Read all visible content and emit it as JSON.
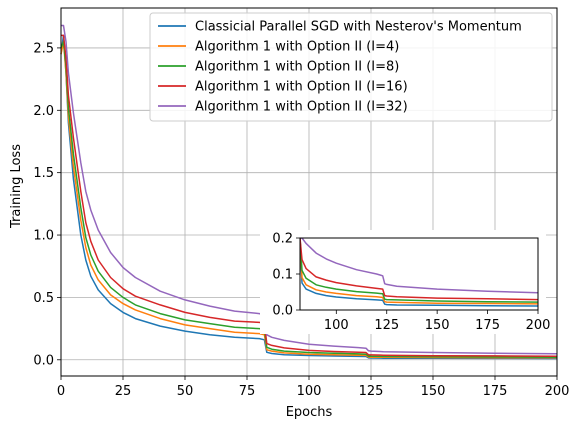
{
  "chart_data": [
    {
      "type": "line",
      "title": "",
      "xlabel": "Epochs",
      "ylabel": "Training Loss",
      "xlim": [
        0,
        200
      ],
      "ylim": [
        -0.13,
        2.82
      ],
      "xticks": [
        0,
        25,
        50,
        75,
        100,
        125,
        150,
        175,
        200
      ],
      "yticks": [
        0.0,
        0.5,
        1.0,
        1.5,
        2.0,
        2.5
      ],
      "ytick_labels": [
        "0.0",
        "0.5",
        "1.0",
        "1.5",
        "2.0",
        "2.5"
      ],
      "grid": true,
      "legend_position": "top-right",
      "series": [
        {
          "name": "Classicial Parallel SGD with Nesterov's Momentum",
          "color": "#1f77b4",
          "x": [
            0,
            1,
            2,
            3,
            5,
            8,
            10,
            12,
            15,
            20,
            25,
            30,
            40,
            50,
            60,
            70,
            80,
            82,
            83,
            85,
            90,
            100,
            110,
            120,
            123,
            124,
            125,
            130,
            150,
            175,
            200
          ],
          "y": [
            2.45,
            2.6,
            2.3,
            1.9,
            1.45,
            1.0,
            0.8,
            0.67,
            0.56,
            0.45,
            0.38,
            0.33,
            0.27,
            0.23,
            0.2,
            0.18,
            0.17,
            0.16,
            0.06,
            0.05,
            0.04,
            0.034,
            0.03,
            0.027,
            0.026,
            0.015,
            0.014,
            0.013,
            0.012,
            0.011,
            0.01
          ]
        },
        {
          "name": "Algorithm 1 with Option II (I=4)",
          "color": "#ff7f0e",
          "x": [
            0,
            1,
            2,
            3,
            5,
            8,
            10,
            12,
            15,
            20,
            25,
            30,
            40,
            50,
            60,
            70,
            80,
            82,
            83,
            85,
            90,
            100,
            110,
            120,
            123,
            124,
            125,
            130,
            150,
            175,
            200
          ],
          "y": [
            2.45,
            2.55,
            2.3,
            1.95,
            1.55,
            1.12,
            0.9,
            0.76,
            0.64,
            0.52,
            0.45,
            0.4,
            0.33,
            0.28,
            0.25,
            0.22,
            0.21,
            0.2,
            0.08,
            0.07,
            0.055,
            0.045,
            0.04,
            0.037,
            0.035,
            0.022,
            0.021,
            0.02,
            0.018,
            0.017,
            0.016
          ]
        },
        {
          "name": "Algorithm 1 with Option II (I=8)",
          "color": "#2ca02c",
          "x": [
            0,
            1,
            2,
            3,
            5,
            8,
            10,
            12,
            15,
            20,
            25,
            30,
            40,
            50,
            60,
            70,
            80,
            82,
            83,
            85,
            90,
            100,
            110,
            120,
            123,
            124,
            125,
            130,
            150,
            175,
            200
          ],
          "y": [
            2.5,
            2.55,
            2.35,
            2.02,
            1.65,
            1.22,
            0.98,
            0.84,
            0.71,
            0.58,
            0.5,
            0.44,
            0.37,
            0.32,
            0.29,
            0.26,
            0.25,
            0.24,
            0.1,
            0.085,
            0.07,
            0.058,
            0.052,
            0.047,
            0.045,
            0.029,
            0.028,
            0.027,
            0.024,
            0.022,
            0.021
          ]
        },
        {
          "name": "Algorithm 1 with Option II (I=16)",
          "color": "#d62728",
          "x": [
            0,
            1,
            2,
            3,
            5,
            8,
            10,
            12,
            15,
            20,
            25,
            30,
            40,
            50,
            60,
            70,
            80,
            82,
            83,
            85,
            90,
            100,
            110,
            120,
            123,
            124,
            125,
            130,
            150,
            175,
            200
          ],
          "y": [
            2.6,
            2.6,
            2.42,
            2.12,
            1.78,
            1.35,
            1.1,
            0.95,
            0.8,
            0.66,
            0.57,
            0.51,
            0.44,
            0.38,
            0.34,
            0.31,
            0.3,
            0.29,
            0.13,
            0.115,
            0.095,
            0.075,
            0.066,
            0.06,
            0.058,
            0.04,
            0.039,
            0.037,
            0.033,
            0.031,
            0.029
          ]
        },
        {
          "name": "Algorithm 1 with Option II (I=32)",
          "color": "#9467bd",
          "x": [
            0,
            1,
            2,
            3,
            5,
            8,
            10,
            12,
            15,
            20,
            25,
            30,
            40,
            50,
            60,
            70,
            80,
            82,
            83,
            85,
            90,
            100,
            110,
            120,
            123,
            124,
            125,
            130,
            150,
            175,
            200
          ],
          "y": [
            2.68,
            2.68,
            2.55,
            2.3,
            1.98,
            1.58,
            1.35,
            1.2,
            1.04,
            0.86,
            0.74,
            0.66,
            0.55,
            0.48,
            0.43,
            0.39,
            0.37,
            0.35,
            0.2,
            0.18,
            0.155,
            0.125,
            0.11,
            0.098,
            0.093,
            0.072,
            0.07,
            0.065,
            0.058,
            0.052,
            0.048
          ]
        }
      ]
    },
    {
      "type": "line",
      "title": "",
      "xlabel": "",
      "ylabel": "",
      "xlim": [
        82,
        200
      ],
      "ylim": [
        0,
        0.2
      ],
      "xticks": [
        100,
        125,
        150,
        175,
        200
      ],
      "yticks": [
        0.0,
        0.1,
        0.2
      ],
      "ytick_labels": [
        "0.0",
        "0.1",
        "0.2"
      ],
      "grid": false,
      "legend_position": "none",
      "series": [
        {
          "color": "#1f77b4",
          "x": [
            82,
            83,
            85,
            90,
            95,
            100,
            110,
            120,
            123,
            124,
            125,
            130,
            150,
            175,
            200
          ],
          "y": [
            0.2,
            0.075,
            0.058,
            0.046,
            0.04,
            0.036,
            0.031,
            0.028,
            0.027,
            0.016,
            0.015,
            0.014,
            0.013,
            0.012,
            0.011
          ]
        },
        {
          "color": "#ff7f0e",
          "x": [
            82,
            83,
            85,
            90,
            95,
            100,
            110,
            120,
            123,
            124,
            125,
            130,
            150,
            175,
            200
          ],
          "y": [
            0.2,
            0.09,
            0.07,
            0.056,
            0.05,
            0.046,
            0.04,
            0.037,
            0.035,
            0.023,
            0.022,
            0.021,
            0.019,
            0.018,
            0.017
          ]
        },
        {
          "color": "#2ca02c",
          "x": [
            82,
            83,
            85,
            90,
            95,
            100,
            110,
            120,
            123,
            124,
            125,
            130,
            150,
            175,
            200
          ],
          "y": [
            0.2,
            0.11,
            0.088,
            0.07,
            0.063,
            0.058,
            0.051,
            0.047,
            0.045,
            0.03,
            0.029,
            0.028,
            0.025,
            0.023,
            0.022
          ]
        },
        {
          "color": "#d62728",
          "x": [
            82,
            83,
            85,
            90,
            95,
            100,
            110,
            120,
            123,
            124,
            125,
            130,
            150,
            175,
            200
          ],
          "y": [
            0.2,
            0.14,
            0.115,
            0.092,
            0.083,
            0.076,
            0.067,
            0.06,
            0.058,
            0.04,
            0.039,
            0.037,
            0.033,
            0.031,
            0.029
          ]
        },
        {
          "color": "#9467bd",
          "x": [
            82,
            83,
            85,
            90,
            95,
            100,
            110,
            120,
            123,
            124,
            125,
            130,
            150,
            175,
            200
          ],
          "y": [
            0.2,
            0.2,
            0.185,
            0.158,
            0.142,
            0.13,
            0.112,
            0.1,
            0.095,
            0.073,
            0.071,
            0.066,
            0.058,
            0.052,
            0.048
          ]
        }
      ]
    }
  ]
}
